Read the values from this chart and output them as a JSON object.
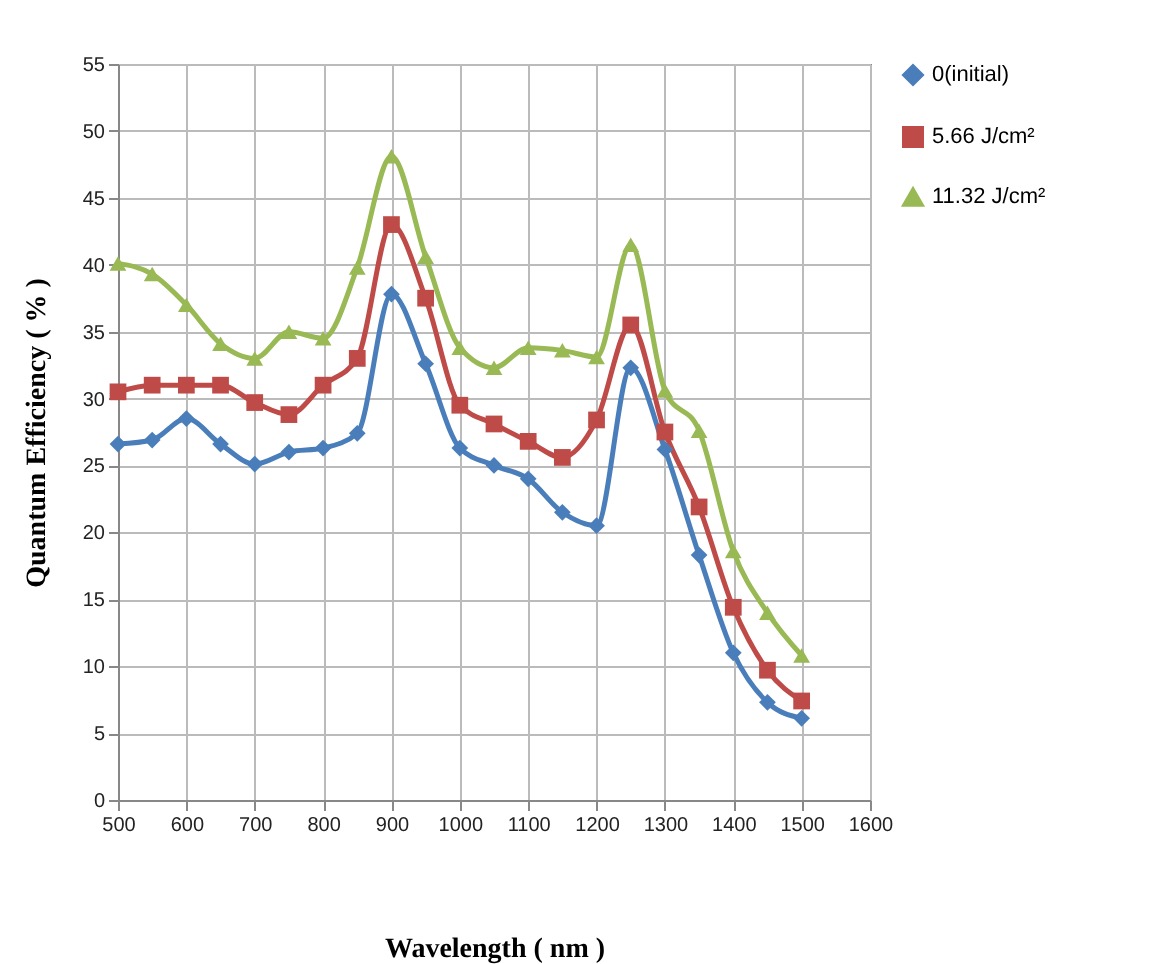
{
  "chart_data": {
    "type": "line",
    "xlabel": "Wavelength ( nm )",
    "ylabel": "Quantum Efficiency ( % )",
    "x": [
      500,
      550,
      600,
      650,
      700,
      750,
      800,
      850,
      900,
      950,
      1000,
      1050,
      1100,
      1150,
      1200,
      1250,
      1300,
      1350,
      1400,
      1450,
      1500
    ],
    "series": [
      {
        "name": "0(initial)",
        "color": "#4a7ebb",
        "marker": "diamond",
        "values": [
          26.6,
          26.9,
          28.5,
          26.6,
          25.1,
          26.0,
          26.3,
          27.4,
          37.8,
          32.6,
          26.3,
          25.0,
          24.0,
          21.5,
          20.5,
          32.3,
          26.2,
          18.3,
          11.0,
          7.3,
          6.1
        ]
      },
      {
        "name": "5.66 J/cm²",
        "color": "#be4b48",
        "marker": "square",
        "values": [
          30.5,
          31.0,
          31.0,
          31.0,
          29.7,
          28.8,
          31.0,
          33.0,
          43.0,
          37.5,
          29.5,
          28.1,
          26.8,
          25.6,
          28.4,
          35.5,
          27.5,
          21.9,
          14.4,
          9.7,
          7.4
        ]
      },
      {
        "name": "11.32 J/cm²",
        "color": "#98b954",
        "marker": "triangle",
        "values": [
          40.1,
          39.3,
          37.0,
          34.1,
          33.0,
          35.0,
          34.5,
          39.8,
          48.1,
          40.6,
          33.8,
          32.3,
          33.8,
          33.6,
          33.1,
          41.5,
          30.6,
          27.6,
          18.6,
          14.0,
          10.8
        ]
      }
    ],
    "xlim": [
      500,
      1600
    ],
    "xticks": [
      500,
      600,
      700,
      800,
      900,
      1000,
      1100,
      1200,
      1300,
      1400,
      1500,
      1600
    ],
    "ylim": [
      0,
      55
    ],
    "yticks": [
      0,
      5,
      10,
      15,
      20,
      25,
      30,
      35,
      40,
      45,
      50,
      55
    ],
    "grid": true,
    "legend": "right",
    "line_style": "solid"
  }
}
